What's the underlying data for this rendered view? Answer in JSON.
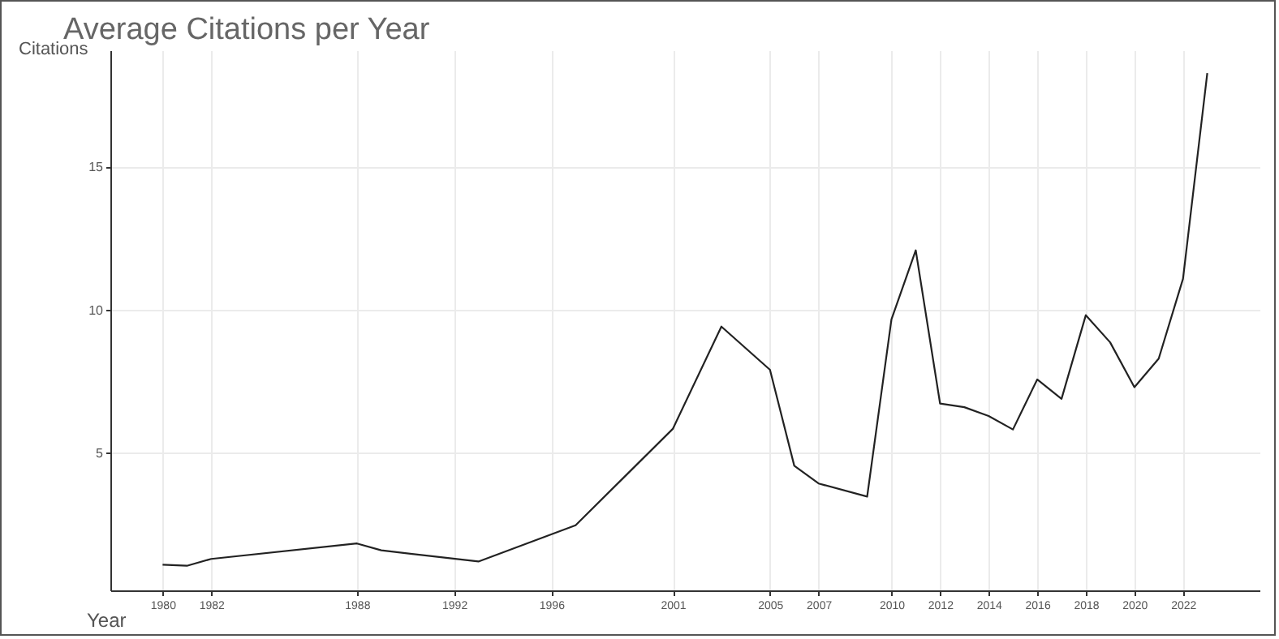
{
  "chart_data": {
    "type": "line",
    "title": "Average Citations per Year",
    "xlabel": "Year",
    "ylabel": "Citations",
    "x": [
      1980,
      1981,
      1982,
      1988,
      1989,
      1993,
      1997,
      2001,
      2003,
      2005,
      2006,
      2007,
      2009,
      2010,
      2011,
      2012,
      2013,
      2014,
      2015,
      2016,
      2017,
      2018,
      2019,
      2020,
      2021,
      2022,
      2023
    ],
    "series": [
      {
        "color": "#222222",
        "values": [
          1.1,
          1.06,
          1.3,
          1.84,
          1.6,
          1.21,
          2.48,
          5.85,
          9.43,
          7.92,
          4.56,
          3.94,
          3.48,
          9.68,
          12.1,
          6.74,
          6.61,
          6.3,
          5.83,
          7.58,
          6.9,
          9.83,
          8.88,
          7.31,
          8.31,
          11.1,
          18.3
        ]
      }
    ],
    "xlim": [
      1977.85,
      2025.15
    ],
    "ylim": [
      0.2,
      19.1
    ],
    "xticks": [
      1980,
      1982,
      1988,
      1992,
      1996,
      2001,
      2005,
      2007,
      2010,
      2012,
      2014,
      2016,
      2018,
      2020,
      2022
    ],
    "yticks": [
      5,
      10,
      15
    ],
    "grid": true,
    "legend": false,
    "marker": "none",
    "line_style": "solid"
  }
}
